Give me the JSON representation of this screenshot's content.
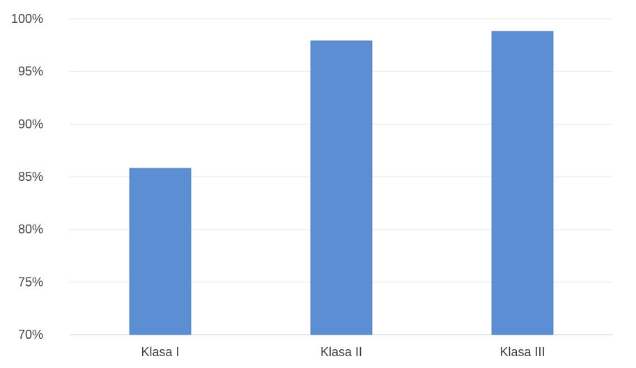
{
  "chart_data": {
    "type": "bar",
    "title": "",
    "xlabel": "",
    "ylabel": "",
    "categories": [
      "Klasa I",
      "Klasa II",
      "Klasa III"
    ],
    "values": [
      85.8,
      97.9,
      98.8
    ],
    "ylim": [
      70,
      100
    ],
    "yticks": [
      70,
      75,
      80,
      85,
      90,
      95,
      100
    ],
    "ytick_labels": [
      "70%",
      "75%",
      "80%",
      "85%",
      "90%",
      "95%",
      "100%"
    ],
    "grid": true,
    "legend": "none",
    "colors": {
      "bar": "#5b8ed2",
      "bar_edge": "#4a7cc0"
    }
  }
}
